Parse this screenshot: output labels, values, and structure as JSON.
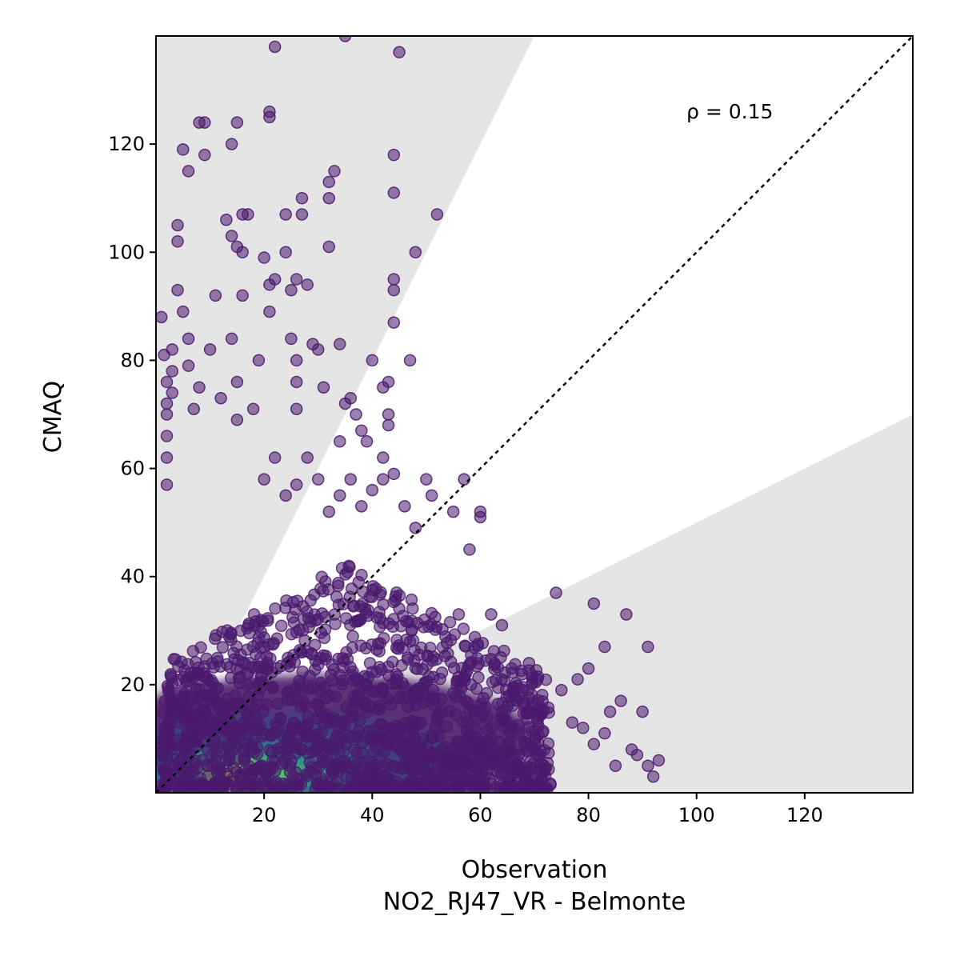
{
  "chart_data": {
    "type": "scatter",
    "title": "",
    "xlabel": "Observation",
    "xlabel_line2": "NO2_RJ47_VR - Belmonte",
    "ylabel": "CMAQ",
    "xlim": [
      0,
      140
    ],
    "ylim": [
      0,
      140
    ],
    "xticks": [
      20,
      40,
      60,
      80,
      100,
      120
    ],
    "yticks": [
      20,
      40,
      60,
      80,
      100,
      120
    ],
    "grid": false,
    "annotation": "ρ = 0.15",
    "reference_line": "1:1",
    "shaded_bands": [
      {
        "name": "upper",
        "slope_from_x": 2.0
      },
      {
        "name": "lower",
        "slope_to_x": 0.5
      }
    ],
    "colormap": "viridis",
    "point_color": "#4a1a6e",
    "outlier_points": [
      [
        1,
        88
      ],
      [
        1.5,
        81
      ],
      [
        2,
        76
      ],
      [
        2,
        72
      ],
      [
        2,
        70
      ],
      [
        2,
        66
      ],
      [
        2,
        62
      ],
      [
        2,
        57
      ],
      [
        3,
        82
      ],
      [
        3,
        78
      ],
      [
        3,
        74
      ],
      [
        4,
        105
      ],
      [
        4,
        102
      ],
      [
        4,
        93
      ],
      [
        5,
        89
      ],
      [
        5,
        119
      ],
      [
        6,
        115
      ],
      [
        6,
        84
      ],
      [
        6,
        79
      ],
      [
        7,
        71
      ],
      [
        8,
        124
      ],
      [
        8,
        75
      ],
      [
        9,
        124
      ],
      [
        9,
        118
      ],
      [
        10,
        82
      ],
      [
        11,
        92
      ],
      [
        12,
        73
      ],
      [
        13,
        106
      ],
      [
        14,
        120
      ],
      [
        14,
        103
      ],
      [
        14,
        84
      ],
      [
        15,
        124
      ],
      [
        15,
        101
      ],
      [
        15,
        76
      ],
      [
        15,
        69
      ],
      [
        16,
        107
      ],
      [
        16,
        100
      ],
      [
        16,
        92
      ],
      [
        17,
        107
      ],
      [
        18,
        71
      ],
      [
        19,
        80
      ],
      [
        20,
        99
      ],
      [
        21,
        126
      ],
      [
        21,
        125
      ],
      [
        21,
        94
      ],
      [
        21,
        89
      ],
      [
        22,
        95
      ],
      [
        22,
        138
      ],
      [
        24,
        100
      ],
      [
        24,
        107
      ],
      [
        25,
        84
      ],
      [
        25,
        93
      ],
      [
        26,
        95
      ],
      [
        26,
        80
      ],
      [
        26,
        76
      ],
      [
        26,
        71
      ],
      [
        27,
        107
      ],
      [
        27,
        110
      ],
      [
        28,
        94
      ],
      [
        29,
        83
      ],
      [
        30,
        82
      ],
      [
        31,
        75
      ],
      [
        32,
        113
      ],
      [
        32,
        101
      ],
      [
        32,
        110
      ],
      [
        33,
        115
      ],
      [
        34,
        83
      ],
      [
        34,
        65
      ],
      [
        35,
        140
      ],
      [
        35,
        72
      ],
      [
        36,
        73
      ],
      [
        37,
        70
      ],
      [
        38,
        67
      ],
      [
        39,
        65
      ],
      [
        40,
        80
      ],
      [
        42,
        62
      ],
      [
        42,
        75
      ],
      [
        43,
        70
      ],
      [
        43,
        68
      ],
      [
        43,
        76
      ],
      [
        44,
        111
      ],
      [
        44,
        93
      ],
      [
        44,
        95
      ],
      [
        44,
        87
      ],
      [
        44,
        118
      ],
      [
        45,
        137
      ],
      [
        47,
        80
      ],
      [
        48,
        100
      ],
      [
        52,
        107
      ],
      [
        20,
        58
      ],
      [
        22,
        62
      ],
      [
        24,
        55
      ],
      [
        26,
        57
      ],
      [
        28,
        62
      ],
      [
        30,
        58
      ],
      [
        32,
        52
      ],
      [
        34,
        55
      ],
      [
        36,
        58
      ],
      [
        38,
        53
      ],
      [
        40,
        56
      ],
      [
        42,
        58
      ],
      [
        44,
        59
      ],
      [
        46,
        53
      ],
      [
        48,
        49
      ],
      [
        50,
        58
      ],
      [
        51,
        55
      ],
      [
        55,
        52
      ],
      [
        57,
        58
      ],
      [
        60,
        52
      ],
      [
        60,
        51
      ],
      [
        58,
        45
      ],
      [
        56,
        33
      ],
      [
        62,
        33
      ],
      [
        64,
        31
      ],
      [
        69,
        24
      ],
      [
        74,
        37
      ],
      [
        75,
        19
      ],
      [
        78,
        21
      ],
      [
        80,
        23
      ],
      [
        81,
        35
      ],
      [
        83,
        27
      ],
      [
        84,
        15
      ],
      [
        86,
        17
      ],
      [
        87,
        33
      ],
      [
        88,
        8
      ],
      [
        89,
        7
      ],
      [
        90,
        15
      ],
      [
        91,
        27
      ],
      [
        91,
        5
      ],
      [
        92,
        3
      ],
      [
        93,
        6
      ],
      [
        77,
        13
      ],
      [
        79,
        12
      ],
      [
        81,
        9
      ],
      [
        83,
        11
      ],
      [
        85,
        5
      ]
    ]
  }
}
